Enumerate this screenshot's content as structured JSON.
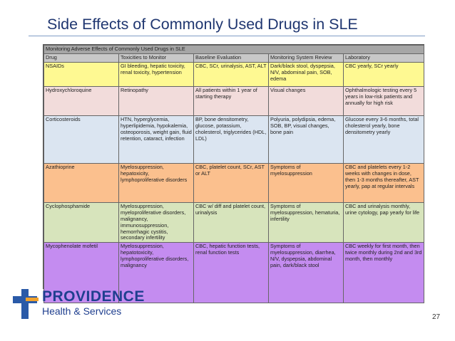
{
  "header": {
    "title": "Side Effects of Commonly Used Drugs in SLE"
  },
  "table": {
    "caption": "Monitoring Adverse Effects of Commonly Used Drugs in SLE",
    "columns": [
      "Drug",
      "Toxicities to Monitor",
      "Baseline Evaluation",
      "Monitoring System Review",
      "Laboratory"
    ],
    "rows": [
      [
        "NSAIDs",
        "GI bleeding, hepatic toxicity, renal toxicity, hypertension",
        "CBC, SCr, urinalysis, AST, ALT",
        "Dark/black stool, dyspepsia, N/V, abdominal pain, SOB, edema",
        "CBC yearly, SCr yearly"
      ],
      [
        "Hydroxychloroquine",
        "Retinopathy",
        "All patients within 1 year of starting therapy",
        "Visual changes",
        "Ophthalmologic testing every 5 years in low-risk patients and annually for high risk"
      ],
      [
        "Corticosteroids",
        "HTN, hyperglycemia, hyperlipidemia, hypokalemia, osteoporosis, weight gain, fluid retention, cataract, infection",
        "BP, bone densitometry, glucose, potassium, cholesterol, triglycerides (HDL, LDL)",
        "Polyuria, polydipsia, edema, SOB, BP, visual changes, bone pain",
        "Glucose every 3-6 months, total cholesterol yearly, bone densitometry yearly"
      ],
      [
        "Azathioprine",
        "Myelosuppression, hepatoxicity, lymphoproliferative disorders",
        "CBC, platelet count, SCr, AST or ALT",
        "Symptoms of myelosuppression",
        "CBC and platelets every 1-2 weeks with changes in dose, then 1-3 months thereafter, AST yearly, pap at regular intervals"
      ],
      [
        "Cyclophosphamide",
        "Myelosuppression, myeloproliferative disorders, malignancy, immunosuppression, hemorrhagic cystitis, secondary infertility",
        "CBC w/ diff and platelet count, urinalysis",
        "Symptoms of myelosuppression, hematuria, infertility",
        "CBC and urinalysis monthly, urine cytology, pap yearly for life"
      ],
      [
        "Mycophenolate mofetil",
        "Myelosuppression, hepatotoxicity, lymphoproliferative disorders, malignancy",
        "CBC, hepatic function tests, renal function tests",
        "Symptoms of myelosuppression, diarrhea, N/V, dyspepsia, abdominal pain, dark/black stool",
        "CBC weekly for first month, then twice monthly during 2nd and 3rd month, then monthly"
      ]
    ]
  },
  "logo": {
    "name": "PROVIDENCE",
    "subtitle": "Health & Services"
  },
  "page_number": "27"
}
